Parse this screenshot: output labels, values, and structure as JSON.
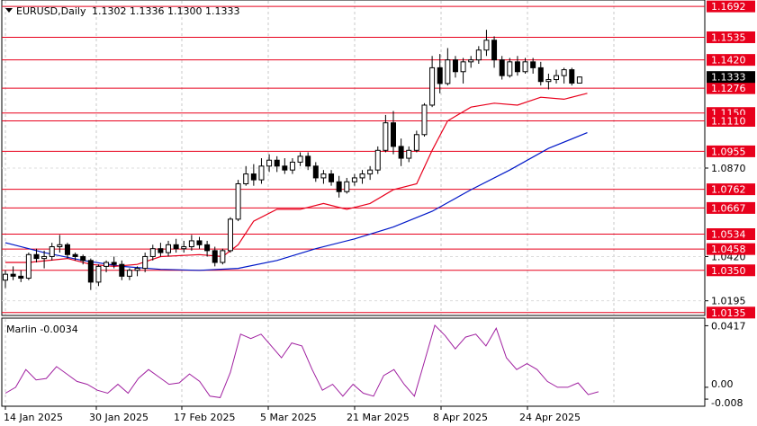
{
  "header": {
    "symbol": "EURUSD,Daily",
    "ohlc": "1.1302 1.1336 1.1300 1.1333"
  },
  "indicator": {
    "label": "Marlin -0.0034",
    "scale_labels": [
      "0.0417",
      "0.00",
      "-0.008"
    ]
  },
  "colors": {
    "level": "#e8001c",
    "level_label_bg": "#e8001c",
    "price_label_bg": "#000000",
    "ma_fast": "#e8001c",
    "ma_slow": "#0018c8",
    "oscillator": "#a020a0",
    "candle": "#000000"
  },
  "chart_data": {
    "type": "candlestick",
    "title": "",
    "price_levels": [
      "1.1692",
      "1.1535",
      "1.1420",
      "1.1276",
      "1.1150",
      "1.1110",
      "1.0955",
      "1.0762",
      "1.0667",
      "1.0534",
      "1.0458",
      "1.0350",
      "1.0135"
    ],
    "price_ticks": [
      "1.0870",
      "1.0420",
      "1.0195"
    ],
    "current_price": "1.1333",
    "ylim": [
      1.0125,
      1.172
    ],
    "x_labels": [
      "14 Jan 2025",
      "30 Jan 2025",
      "17 Feb 2025",
      "5 Mar 2025",
      "21 Mar 2025",
      "8 Apr 2025",
      "24 Apr 2025"
    ],
    "candles": [
      [
        1.03,
        1.035,
        1.026,
        1.033
      ],
      [
        1.033,
        1.037,
        1.03,
        1.032
      ],
      [
        1.032,
        1.035,
        1.029,
        1.031
      ],
      [
        1.031,
        1.044,
        1.03,
        1.043
      ],
      [
        1.043,
        1.046,
        1.039,
        1.041
      ],
      [
        1.041,
        1.045,
        1.036,
        1.042
      ],
      [
        1.042,
        1.049,
        1.04,
        1.047
      ],
      [
        1.047,
        1.053,
        1.044,
        1.048
      ],
      [
        1.048,
        1.049,
        1.041,
        1.043
      ],
      [
        1.043,
        1.044,
        1.04,
        1.042
      ],
      [
        1.042,
        1.043,
        1.038,
        1.04
      ],
      [
        1.04,
        1.041,
        1.025,
        1.029
      ],
      [
        1.029,
        1.038,
        1.027,
        1.037
      ],
      [
        1.037,
        1.04,
        1.034,
        1.039
      ],
      [
        1.039,
        1.042,
        1.036,
        1.038
      ],
      [
        1.038,
        1.04,
        1.03,
        1.032
      ],
      [
        1.032,
        1.036,
        1.03,
        1.035
      ],
      [
        1.035,
        1.037,
        1.032,
        1.036
      ],
      [
        1.036,
        1.044,
        1.034,
        1.042
      ],
      [
        1.042,
        1.048,
        1.04,
        1.046
      ],
      [
        1.046,
        1.049,
        1.042,
        1.044
      ],
      [
        1.044,
        1.05,
        1.042,
        1.048
      ],
      [
        1.048,
        1.051,
        1.044,
        1.046
      ],
      [
        1.046,
        1.05,
        1.044,
        1.047
      ],
      [
        1.047,
        1.053,
        1.045,
        1.05
      ],
      [
        1.05,
        1.052,
        1.046,
        1.048
      ],
      [
        1.048,
        1.05,
        1.042,
        1.045
      ],
      [
        1.045,
        1.047,
        1.037,
        1.039
      ],
      [
        1.039,
        1.046,
        1.038,
        1.045
      ],
      [
        1.045,
        1.062,
        1.044,
        1.061
      ],
      [
        1.061,
        1.081,
        1.06,
        1.079
      ],
      [
        1.079,
        1.088,
        1.078,
        1.084
      ],
      [
        1.084,
        1.089,
        1.078,
        1.081
      ],
      [
        1.081,
        1.092,
        1.079,
        1.088
      ],
      [
        1.088,
        1.094,
        1.085,
        1.091
      ],
      [
        1.091,
        1.093,
        1.085,
        1.088
      ],
      [
        1.088,
        1.092,
        1.084,
        1.086
      ],
      [
        1.086,
        1.092,
        1.084,
        1.09
      ],
      [
        1.09,
        1.095,
        1.088,
        1.093
      ],
      [
        1.093,
        1.095,
        1.086,
        1.088
      ],
      [
        1.088,
        1.09,
        1.08,
        1.082
      ],
      [
        1.082,
        1.086,
        1.079,
        1.084
      ],
      [
        1.084,
        1.086,
        1.078,
        1.08
      ],
      [
        1.08,
        1.083,
        1.072,
        1.075
      ],
      [
        1.075,
        1.082,
        1.074,
        1.08
      ],
      [
        1.08,
        1.084,
        1.078,
        1.082
      ],
      [
        1.082,
        1.086,
        1.079,
        1.084
      ],
      [
        1.084,
        1.088,
        1.081,
        1.086
      ],
      [
        1.086,
        1.098,
        1.084,
        1.096
      ],
      [
        1.096,
        1.114,
        1.095,
        1.11
      ],
      [
        1.11,
        1.116,
        1.094,
        1.098
      ],
      [
        1.098,
        1.102,
        1.088,
        1.092
      ],
      [
        1.092,
        1.098,
        1.09,
        1.096
      ],
      [
        1.096,
        1.106,
        1.095,
        1.104
      ],
      [
        1.104,
        1.12,
        1.103,
        1.119
      ],
      [
        1.119,
        1.144,
        1.118,
        1.138
      ],
      [
        1.138,
        1.145,
        1.125,
        1.13
      ],
      [
        1.13,
        1.148,
        1.129,
        1.142
      ],
      [
        1.142,
        1.144,
        1.133,
        1.136
      ],
      [
        1.136,
        1.143,
        1.13,
        1.141
      ],
      [
        1.141,
        1.144,
        1.138,
        1.142
      ],
      [
        1.142,
        1.149,
        1.14,
        1.147
      ],
      [
        1.147,
        1.1573,
        1.144,
        1.152
      ],
      [
        1.152,
        1.154,
        1.138,
        1.142
      ],
      [
        1.142,
        1.144,
        1.132,
        1.134
      ],
      [
        1.134,
        1.143,
        1.133,
        1.141
      ],
      [
        1.141,
        1.144,
        1.134,
        1.136
      ],
      [
        1.136,
        1.143,
        1.135,
        1.141
      ],
      [
        1.141,
        1.143,
        1.135,
        1.138
      ],
      [
        1.138,
        1.141,
        1.129,
        1.131
      ],
      [
        1.131,
        1.135,
        1.127,
        1.132
      ],
      [
        1.132,
        1.137,
        1.13,
        1.134
      ],
      [
        1.134,
        1.138,
        1.13,
        1.137
      ],
      [
        1.137,
        1.138,
        1.129,
        1.1302
      ],
      [
        1.1302,
        1.1336,
        1.13,
        1.1333
      ]
    ],
    "ma_fast": [
      [
        0,
        1.039
      ],
      [
        3,
        1.039
      ],
      [
        8,
        1.041
      ],
      [
        11,
        1.038
      ],
      [
        14,
        1.037
      ],
      [
        17,
        1.038
      ],
      [
        20,
        1.042
      ],
      [
        25,
        1.043
      ],
      [
        28,
        1.042
      ],
      [
        30,
        1.048
      ],
      [
        32,
        1.06
      ],
      [
        35,
        1.066
      ],
      [
        38,
        1.066
      ],
      [
        41,
        1.069
      ],
      [
        44,
        1.066
      ],
      [
        47,
        1.069
      ],
      [
        50,
        1.076
      ],
      [
        53,
        1.079
      ],
      [
        55,
        1.096
      ],
      [
        57,
        1.111
      ],
      [
        60,
        1.118
      ],
      [
        63,
        1.12
      ],
      [
        66,
        1.119
      ],
      [
        69,
        1.123
      ],
      [
        72,
        1.122
      ],
      [
        75,
        1.125
      ]
    ],
    "ma_slow": [
      [
        0,
        1.049
      ],
      [
        5,
        1.044
      ],
      [
        10,
        1.04
      ],
      [
        15,
        1.037
      ],
      [
        20,
        1.0355
      ],
      [
        25,
        1.035
      ],
      [
        30,
        1.036
      ],
      [
        35,
        1.04
      ],
      [
        40,
        1.046
      ],
      [
        45,
        1.051
      ],
      [
        50,
        1.057
      ],
      [
        55,
        1.065
      ],
      [
        60,
        1.076
      ],
      [
        65,
        1.086
      ],
      [
        70,
        1.097
      ],
      [
        75,
        1.105
      ]
    ],
    "oscillator": {
      "ylim": [
        -0.011,
        0.045
      ],
      "values": [
        [
          0,
          -0.004
        ],
        [
          2,
          0.0
        ],
        [
          4,
          0.012
        ],
        [
          6,
          0.005
        ],
        [
          8,
          0.006
        ],
        [
          10,
          0.014
        ],
        [
          12,
          0.009
        ],
        [
          14,
          0.004
        ],
        [
          16,
          0.002
        ],
        [
          18,
          -0.002
        ],
        [
          20,
          -0.004
        ],
        [
          22,
          0.002
        ],
        [
          24,
          -0.004
        ],
        [
          26,
          0.006
        ],
        [
          28,
          0.012
        ],
        [
          30,
          0.007
        ],
        [
          32,
          0.002
        ],
        [
          34,
          0.003
        ],
        [
          36,
          0.009
        ],
        [
          38,
          0.004
        ],
        [
          40,
          -0.006
        ],
        [
          42,
          -0.007
        ],
        [
          44,
          0.01
        ],
        [
          46,
          0.036
        ],
        [
          48,
          0.033
        ],
        [
          50,
          0.036
        ],
        [
          52,
          0.028
        ],
        [
          54,
          0.02
        ],
        [
          56,
          0.03
        ],
        [
          58,
          0.028
        ],
        [
          60,
          0.012
        ],
        [
          62,
          -0.002
        ],
        [
          64,
          0.002
        ],
        [
          66,
          -0.006
        ],
        [
          68,
          0.002
        ],
        [
          70,
          -0.004
        ],
        [
          72,
          -0.006
        ],
        [
          74,
          0.008
        ],
        [
          76,
          0.012
        ],
        [
          78,
          0.002
        ],
        [
          80,
          -0.006
        ],
        [
          82,
          0.018
        ],
        [
          84,
          0.042
        ],
        [
          86,
          0.035
        ],
        [
          88,
          0.026
        ],
        [
          90,
          0.034
        ],
        [
          92,
          0.036
        ],
        [
          94,
          0.028
        ],
        [
          96,
          0.04
        ],
        [
          98,
          0.02
        ],
        [
          100,
          0.012
        ],
        [
          102,
          0.016
        ],
        [
          104,
          0.012
        ],
        [
          106,
          0.004
        ],
        [
          108,
          0.0
        ],
        [
          110,
          0.0
        ],
        [
          112,
          0.003
        ],
        [
          114,
          -0.005
        ],
        [
          116,
          -0.003
        ]
      ]
    }
  }
}
